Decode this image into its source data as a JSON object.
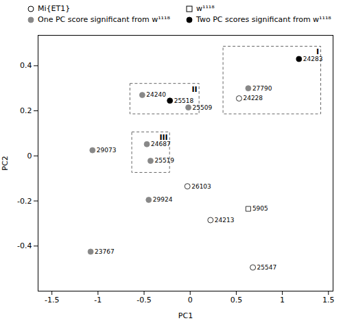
{
  "chart_data": {
    "type": "scatter",
    "xlabel": "PC1",
    "ylabel": "PC2",
    "xlim": [
      -1.65,
      1.55
    ],
    "ylim": [
      -0.6,
      0.535
    ],
    "xticks": [
      -1.5,
      -1.0,
      -0.5,
      0.0,
      0.5,
      1.0,
      1.5
    ],
    "yticks": [
      -0.4,
      -0.2,
      0.0,
      0.2,
      0.4
    ],
    "legend": "top",
    "series": [
      {
        "name": "Mi{ET1}",
        "marker": "circle",
        "color": "white",
        "labels": [
          "24228",
          "26103",
          "24213",
          "25547"
        ],
        "x": [
          0.53,
          -0.03,
          0.22,
          0.68
        ],
        "y": [
          0.255,
          -0.135,
          -0.285,
          -0.495
        ]
      },
      {
        "name": "One PC score significant from w¹¹¹⁸",
        "marker": "circle",
        "color": "#888888",
        "labels": [
          "27790",
          "24240",
          "25509",
          "24687",
          "25519",
          "29073",
          "29924",
          "23767"
        ],
        "x": [
          0.63,
          -0.52,
          -0.02,
          -0.47,
          -0.43,
          -1.06,
          -0.45,
          -1.08
        ],
        "y": [
          0.3,
          0.27,
          0.215,
          0.052,
          -0.022,
          0.025,
          -0.195,
          -0.425
        ]
      },
      {
        "name": "w¹¹¹⁸",
        "marker": "square",
        "color": "white",
        "labels": [
          "5905"
        ],
        "x": [
          0.63
        ],
        "y": [
          -0.235
        ]
      },
      {
        "name": "Two PC scores significant from w¹¹¹⁸",
        "marker": "circle",
        "color": "black",
        "labels": [
          "24283",
          "25518"
        ],
        "x": [
          1.18,
          -0.22
        ],
        "y": [
          0.43,
          0.245
        ]
      }
    ],
    "boxes": [
      {
        "label": "I",
        "x0": 0.36,
        "y0": 0.185,
        "x1": 1.42,
        "y1": 0.485
      },
      {
        "label": "II",
        "x0": -0.65,
        "y0": 0.185,
        "x1": 0.1,
        "y1": 0.32
      },
      {
        "label": "III",
        "x0": -0.63,
        "y0": -0.075,
        "x1": -0.22,
        "y1": 0.105
      }
    ]
  }
}
